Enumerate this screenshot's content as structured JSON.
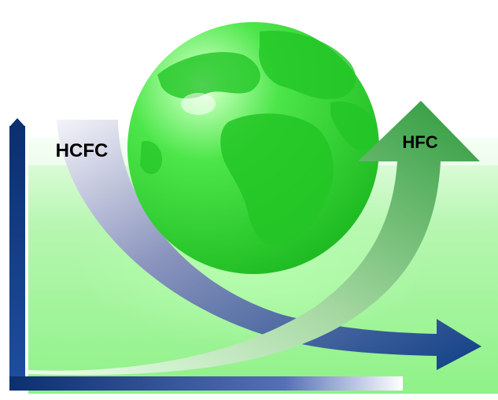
{
  "labels": {
    "hcfc": "HCFC",
    "hfc": "HFC"
  },
  "icons": {
    "globe": "earth-globe-icon",
    "vertical_axis": "up-axis-arrow",
    "hcfc_curve": "declining-arrow",
    "hfc_curve": "rising-arrow"
  },
  "colors": {
    "globe": "#33e033",
    "background_glow": "#9ef59a",
    "hcfc_arrow": "#0f3f86",
    "hfc_arrow": "#2d9a3c",
    "axis": "#0b2f6f"
  }
}
